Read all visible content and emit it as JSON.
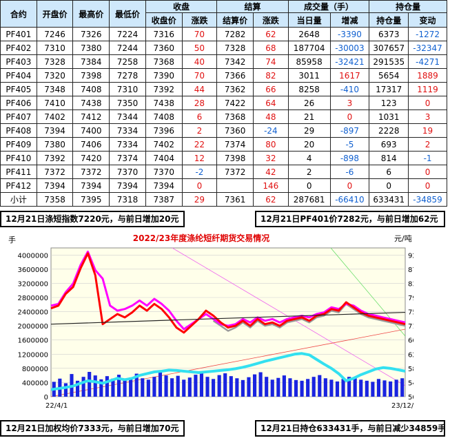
{
  "table": {
    "header1": [
      "合约",
      "开盘价",
      "最高价",
      "最低价",
      "收盘",
      "结算",
      "成交量（手）",
      "持仓量"
    ],
    "header2": [
      "收盘价",
      "涨跌",
      "结算价",
      "涨跌",
      "当日量",
      "增减",
      "持仓量",
      "变动"
    ],
    "rows": [
      [
        "PF401",
        "7246",
        "7326",
        "7224",
        "7316",
        "70",
        "7282",
        "62",
        "2648",
        "-3390",
        "6373",
        "-1272"
      ],
      [
        "PF402",
        "7310",
        "7380",
        "7244",
        "7360",
        "50",
        "7328",
        "68",
        "187704",
        "-30003",
        "307657",
        "-32347"
      ],
      [
        "PF403",
        "7328",
        "7384",
        "7258",
        "7368",
        "40",
        "7342",
        "74",
        "85958",
        "-32421",
        "291535",
        "-4271"
      ],
      [
        "PF404",
        "7320",
        "7398",
        "7278",
        "7390",
        "70",
        "7366",
        "82",
        "3011",
        "1617",
        "5654",
        "1889"
      ],
      [
        "PF405",
        "7348",
        "7408",
        "7310",
        "7392",
        "44",
        "7362",
        "66",
        "8258",
        "-410",
        "17317",
        "1119"
      ],
      [
        "PF406",
        "7410",
        "7438",
        "7350",
        "7438",
        "28",
        "7422",
        "64",
        "26",
        "3",
        "123",
        "0"
      ],
      [
        "PF407",
        "7402",
        "7412",
        "7344",
        "7408",
        "6",
        "7368",
        "48",
        "21",
        "0",
        "1031",
        "3"
      ],
      [
        "PF408",
        "7394",
        "7400",
        "7334",
        "7396",
        "2",
        "7360",
        "-24",
        "29",
        "-897",
        "2228",
        "19"
      ],
      [
        "PF409",
        "7380",
        "7406",
        "7334",
        "7402",
        "22",
        "7374",
        "80",
        "20",
        "-5",
        "693",
        "2"
      ],
      [
        "PF410",
        "7392",
        "7420",
        "7374",
        "7404",
        "12",
        "7398",
        "32",
        "4",
        "-898",
        "814",
        "-1"
      ],
      [
        "PF411",
        "7372",
        "7372",
        "7370",
        "7370",
        "-2",
        "7372",
        "42",
        "2",
        "-6",
        "6",
        "0"
      ],
      [
        "PF412",
        "7394",
        "7394",
        "7394",
        "7394",
        "0",
        "",
        "146",
        "0",
        "0",
        "0",
        "0"
      ],
      [
        "小计",
        "7358",
        "7395",
        "7318",
        "7387",
        "29",
        "7361",
        "62",
        "287681",
        "-66410",
        "633431",
        "-34859"
      ]
    ]
  },
  "notes": {
    "top_left": "12月21日涤短指数7220元，与前日增加20元",
    "top_right": "12月21日PF401价7282元，与前日增加62元",
    "bottom_left": "12月21日加权均价7333元，与前日增加70元",
    "bottom_right": "12月21日持仓633431手，与前日减少34859手"
  },
  "chart_data": {
    "type": "line",
    "title": "2022/23年度涤纶短纤期货交易情况",
    "left_unit": "手",
    "right_unit": "元/吨",
    "left_ticks": [
      "4000000",
      "3600000",
      "3200000",
      "2800000",
      "2400000",
      "2000000",
      "1600000",
      "1200000",
      "800000",
      "400000",
      "0"
    ],
    "right_ticks": [
      "9200",
      "8780",
      "8360",
      "7940",
      "7520",
      "7100",
      "6680",
      "6260",
      "5840",
      "5420",
      "5000"
    ],
    "ylim_left": [
      0,
      4200000
    ],
    "ylim_right": [
      5000,
      9410
    ],
    "x_start": "22/4/1",
    "x_end": "23/12/21",
    "colors": {
      "price_red": "#ff0000",
      "price_magenta": "#ff00ff",
      "price_gray": "#9a9a9a",
      "open_interest": "#33e0f0",
      "volume": "#1a24e0",
      "trend": "#222222"
    },
    "series": [
      {
        "key": "red",
        "kind": "price",
        "values": [
          7620,
          7700,
          8050,
          8250,
          8800,
          9250,
          8600,
          7150,
          7300,
          7450,
          7350,
          7500,
          7700,
          7550,
          7750,
          7600,
          7350,
          7050,
          6900,
          7100,
          7300,
          7550,
          7400,
          7200,
          7050,
          7100,
          7250,
          7100,
          7300,
          7150,
          7200,
          7100,
          7250,
          7300,
          7350,
          7250,
          7400,
          7450,
          7600,
          7550,
          7800,
          7650,
          7500,
          7400,
          7350,
          7300,
          7250,
          7200,
          7150
        ]
      },
      {
        "key": "magenta",
        "kind": "price",
        "values": [
          7700,
          7750,
          8100,
          8350,
          8900,
          9300,
          8750,
          8500,
          7700,
          7550,
          7600,
          7700,
          7850,
          7700,
          7900,
          7750,
          7550,
          7250,
          7000,
          7150,
          7300,
          7450,
          7300,
          7150,
          7100,
          7150,
          7300,
          7200,
          7350,
          7250,
          7300,
          7200,
          7300,
          7350,
          7400,
          7350,
          7450,
          7500,
          7650,
          7600,
          7750,
          7700,
          7550,
          7450,
          7400,
          7350,
          7300,
          7250,
          7200
        ]
      },
      {
        "key": "gray",
        "kind": "price",
        "values": [
          null,
          null,
          null,
          null,
          null,
          null,
          null,
          null,
          null,
          null,
          null,
          null,
          null,
          null,
          null,
          null,
          null,
          null,
          null,
          null,
          null,
          null,
          7250,
          7100,
          6950,
          7050,
          7200,
          7050,
          7250,
          7100,
          7150,
          7050,
          7200,
          7250,
          7300,
          7200,
          7350,
          7400,
          7550,
          7500,
          7750,
          7600,
          7450,
          7350,
          7300,
          7250,
          7200,
          7150,
          7100
        ]
      },
      {
        "key": "oi",
        "kind": "volume",
        "values": [
          200000,
          230000,
          260000,
          300000,
          380000,
          450000,
          420000,
          380000,
          450000,
          520000,
          480000,
          520000,
          600000,
          650000,
          700000,
          720000,
          750000,
          740000,
          720000,
          700000,
          680000,
          700000,
          720000,
          740000,
          760000,
          790000,
          830000,
          880000,
          940000,
          1000000,
          1050000,
          1100000,
          1150000,
          1200000,
          1220000,
          1180000,
          1050000,
          920000,
          800000,
          650000,
          450000,
          520000,
          620000,
          700000,
          780000,
          820000,
          800000,
          760000,
          720000
        ]
      }
    ],
    "volume_bars": [
      420000,
      510000,
      380000,
      640000,
      450000,
      560000,
      700000,
      600000,
      490000,
      580000,
      510000,
      620000,
      470000,
      540000,
      650000,
      520000,
      480000,
      560000,
      700000,
      600000,
      520000,
      590000,
      480000,
      540000,
      620000,
      700000,
      560000,
      500000,
      610000,
      660000,
      580000,
      520000,
      470000,
      550000,
      630000,
      690000,
      560000,
      480000,
      530000,
      600000,
      520000,
      470000,
      450000,
      500000,
      560000,
      610000,
      520000,
      480000,
      430000,
      500000,
      560000,
      520000,
      480000,
      450000,
      420000,
      500000,
      460000,
      430000,
      480000,
      520000
    ]
  }
}
